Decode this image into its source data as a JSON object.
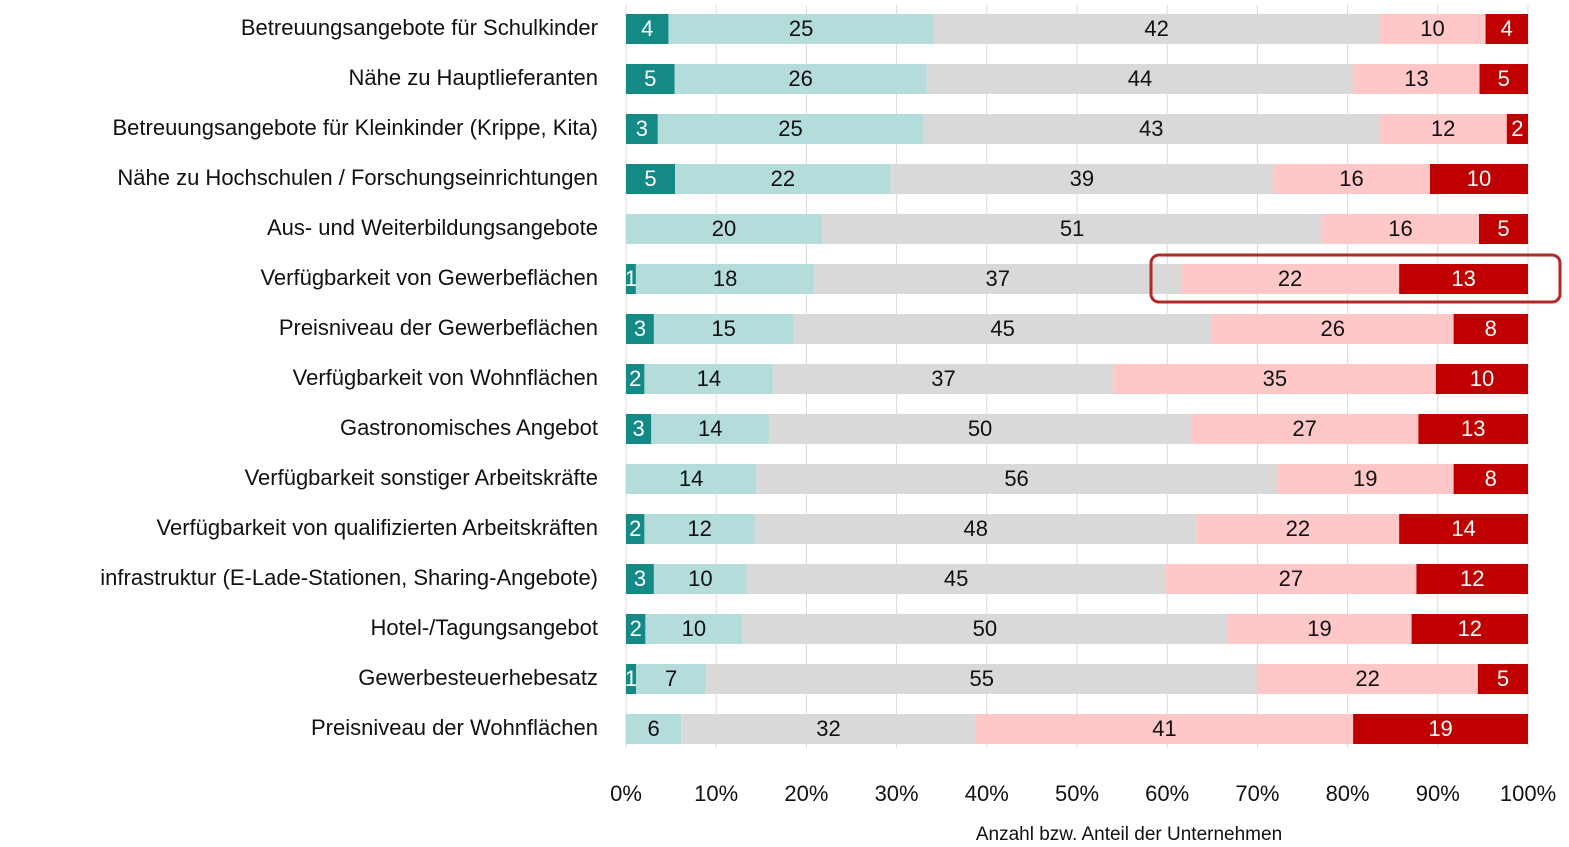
{
  "chart_data": {
    "type": "bar100h",
    "categories": [
      "Betreuungsangebote für Schulkinder",
      "Nähe zu Hauptlieferanten",
      "Betreuungsangebote für Kleinkinder (Krippe, Kita)",
      "Nähe zu Hochschulen / Forschungseinrichtungen",
      "Aus- und Weiterbildungsangebote",
      "Verfügbarkeit von Gewerbeflächen",
      "Preisniveau der Gewerbeflächen",
      "Verfügbarkeit von Wohnflächen",
      "Gastronomisches Angebot",
      "Verfügbarkeit sonstiger Arbeitskräfte",
      "Verfügbarkeit von qualifizierten Arbeitskräften",
      "infrastruktur (E-Lade-Stationen, Sharing-Angebote)",
      "Hotel-/Tagungsangebot",
      "Gewerbesteuerhebesatz",
      "Preisniveau der Wohnflächen"
    ],
    "series": [
      {
        "color": "#138a86",
        "values": [
          4,
          5,
          3,
          5,
          null,
          1,
          3,
          2,
          3,
          null,
          2,
          3,
          2,
          1,
          null
        ]
      },
      {
        "color": "#b4dcdb",
        "values": [
          25,
          26,
          25,
          22,
          20,
          18,
          15,
          14,
          14,
          14,
          12,
          10,
          10,
          7,
          6
        ]
      },
      {
        "color": "#d9d9d9",
        "values": [
          42,
          44,
          43,
          39,
          51,
          37,
          45,
          37,
          50,
          56,
          48,
          45,
          50,
          55,
          32
        ]
      },
      {
        "color": "#ffc7c8",
        "values": [
          10,
          13,
          12,
          16,
          16,
          22,
          26,
          35,
          27,
          19,
          22,
          27,
          19,
          22,
          41
        ]
      },
      {
        "color": "#c00000",
        "values": [
          4,
          5,
          2,
          10,
          5,
          13,
          8,
          10,
          13,
          8,
          14,
          12,
          12,
          5,
          19
        ]
      }
    ],
    "xlabel": "Anzahl bzw. Anteil der Unternehmen",
    "xlim": [
      0,
      100
    ],
    "xticks": [
      {
        "value": 0,
        "label": "0%"
      },
      {
        "value": 10,
        "label": "10%"
      },
      {
        "value": 20,
        "label": "20%"
      },
      {
        "value": 30,
        "label": "30%"
      },
      {
        "value": 40,
        "label": "40%"
      },
      {
        "value": 50,
        "label": "50%"
      },
      {
        "value": 60,
        "label": "60%"
      },
      {
        "value": 70,
        "label": "70%"
      },
      {
        "value": 80,
        "label": "80%"
      },
      {
        "value": 90,
        "label": "90%"
      },
      {
        "value": 100,
        "label": "100%"
      }
    ],
    "grid": true
  }
}
